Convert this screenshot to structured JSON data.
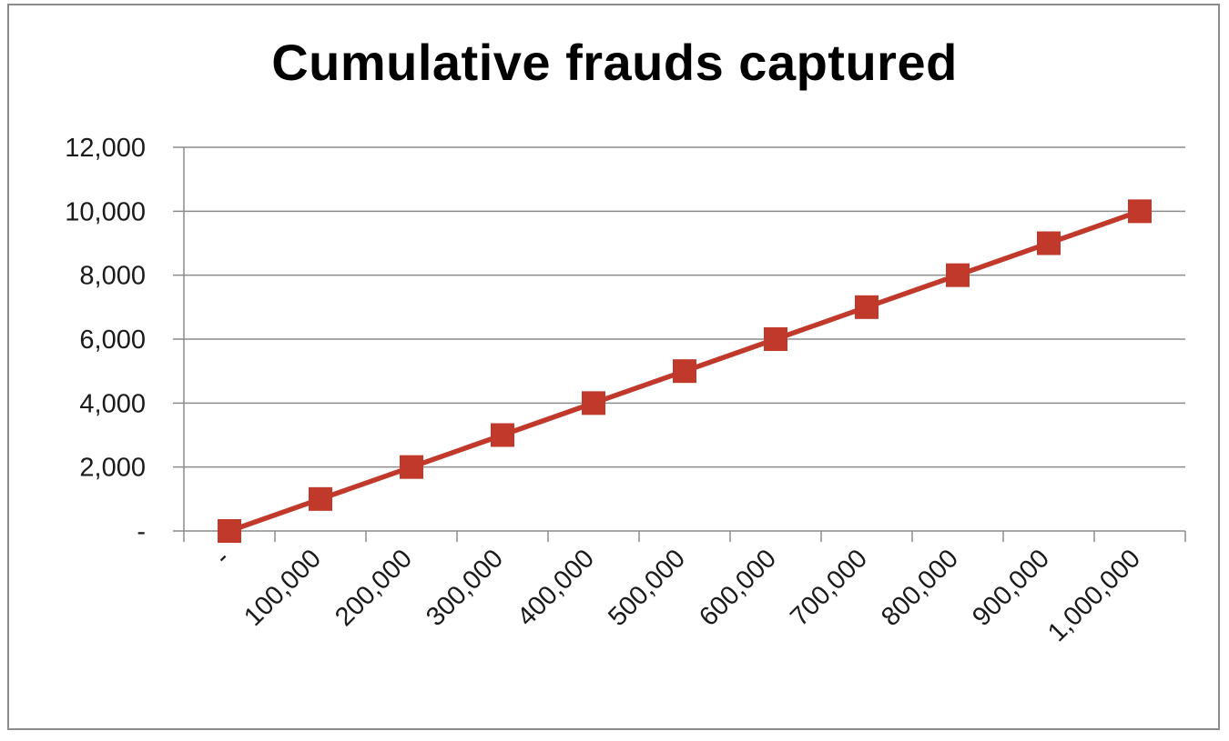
{
  "chart_data": {
    "type": "line",
    "title": "Cumulative frauds captured",
    "categories": [
      "-",
      "100,000",
      "200,000",
      "300,000",
      "400,000",
      "500,000",
      "600,000",
      "700,000",
      "800,000",
      "900,000",
      "1,000,000"
    ],
    "series": [
      {
        "values": [
          0,
          1000,
          2000,
          3000,
          4000,
          5000,
          6000,
          7000,
          8000,
          9000,
          10000
        ]
      }
    ],
    "y_ticks": [
      "-",
      "2,000",
      "4,000",
      "6,000",
      "8,000",
      "10,000",
      "12,000"
    ],
    "xlabel": "",
    "ylabel": "",
    "ylim": [
      0,
      12000
    ],
    "grid": "horizontal",
    "legend": "none",
    "marker": "square",
    "colors": {
      "series": "#c0392b",
      "marker": "#c0392b",
      "grid": "#8c8c8c",
      "axis": "#8c8c8c",
      "frame": "#8c8c8c"
    }
  }
}
